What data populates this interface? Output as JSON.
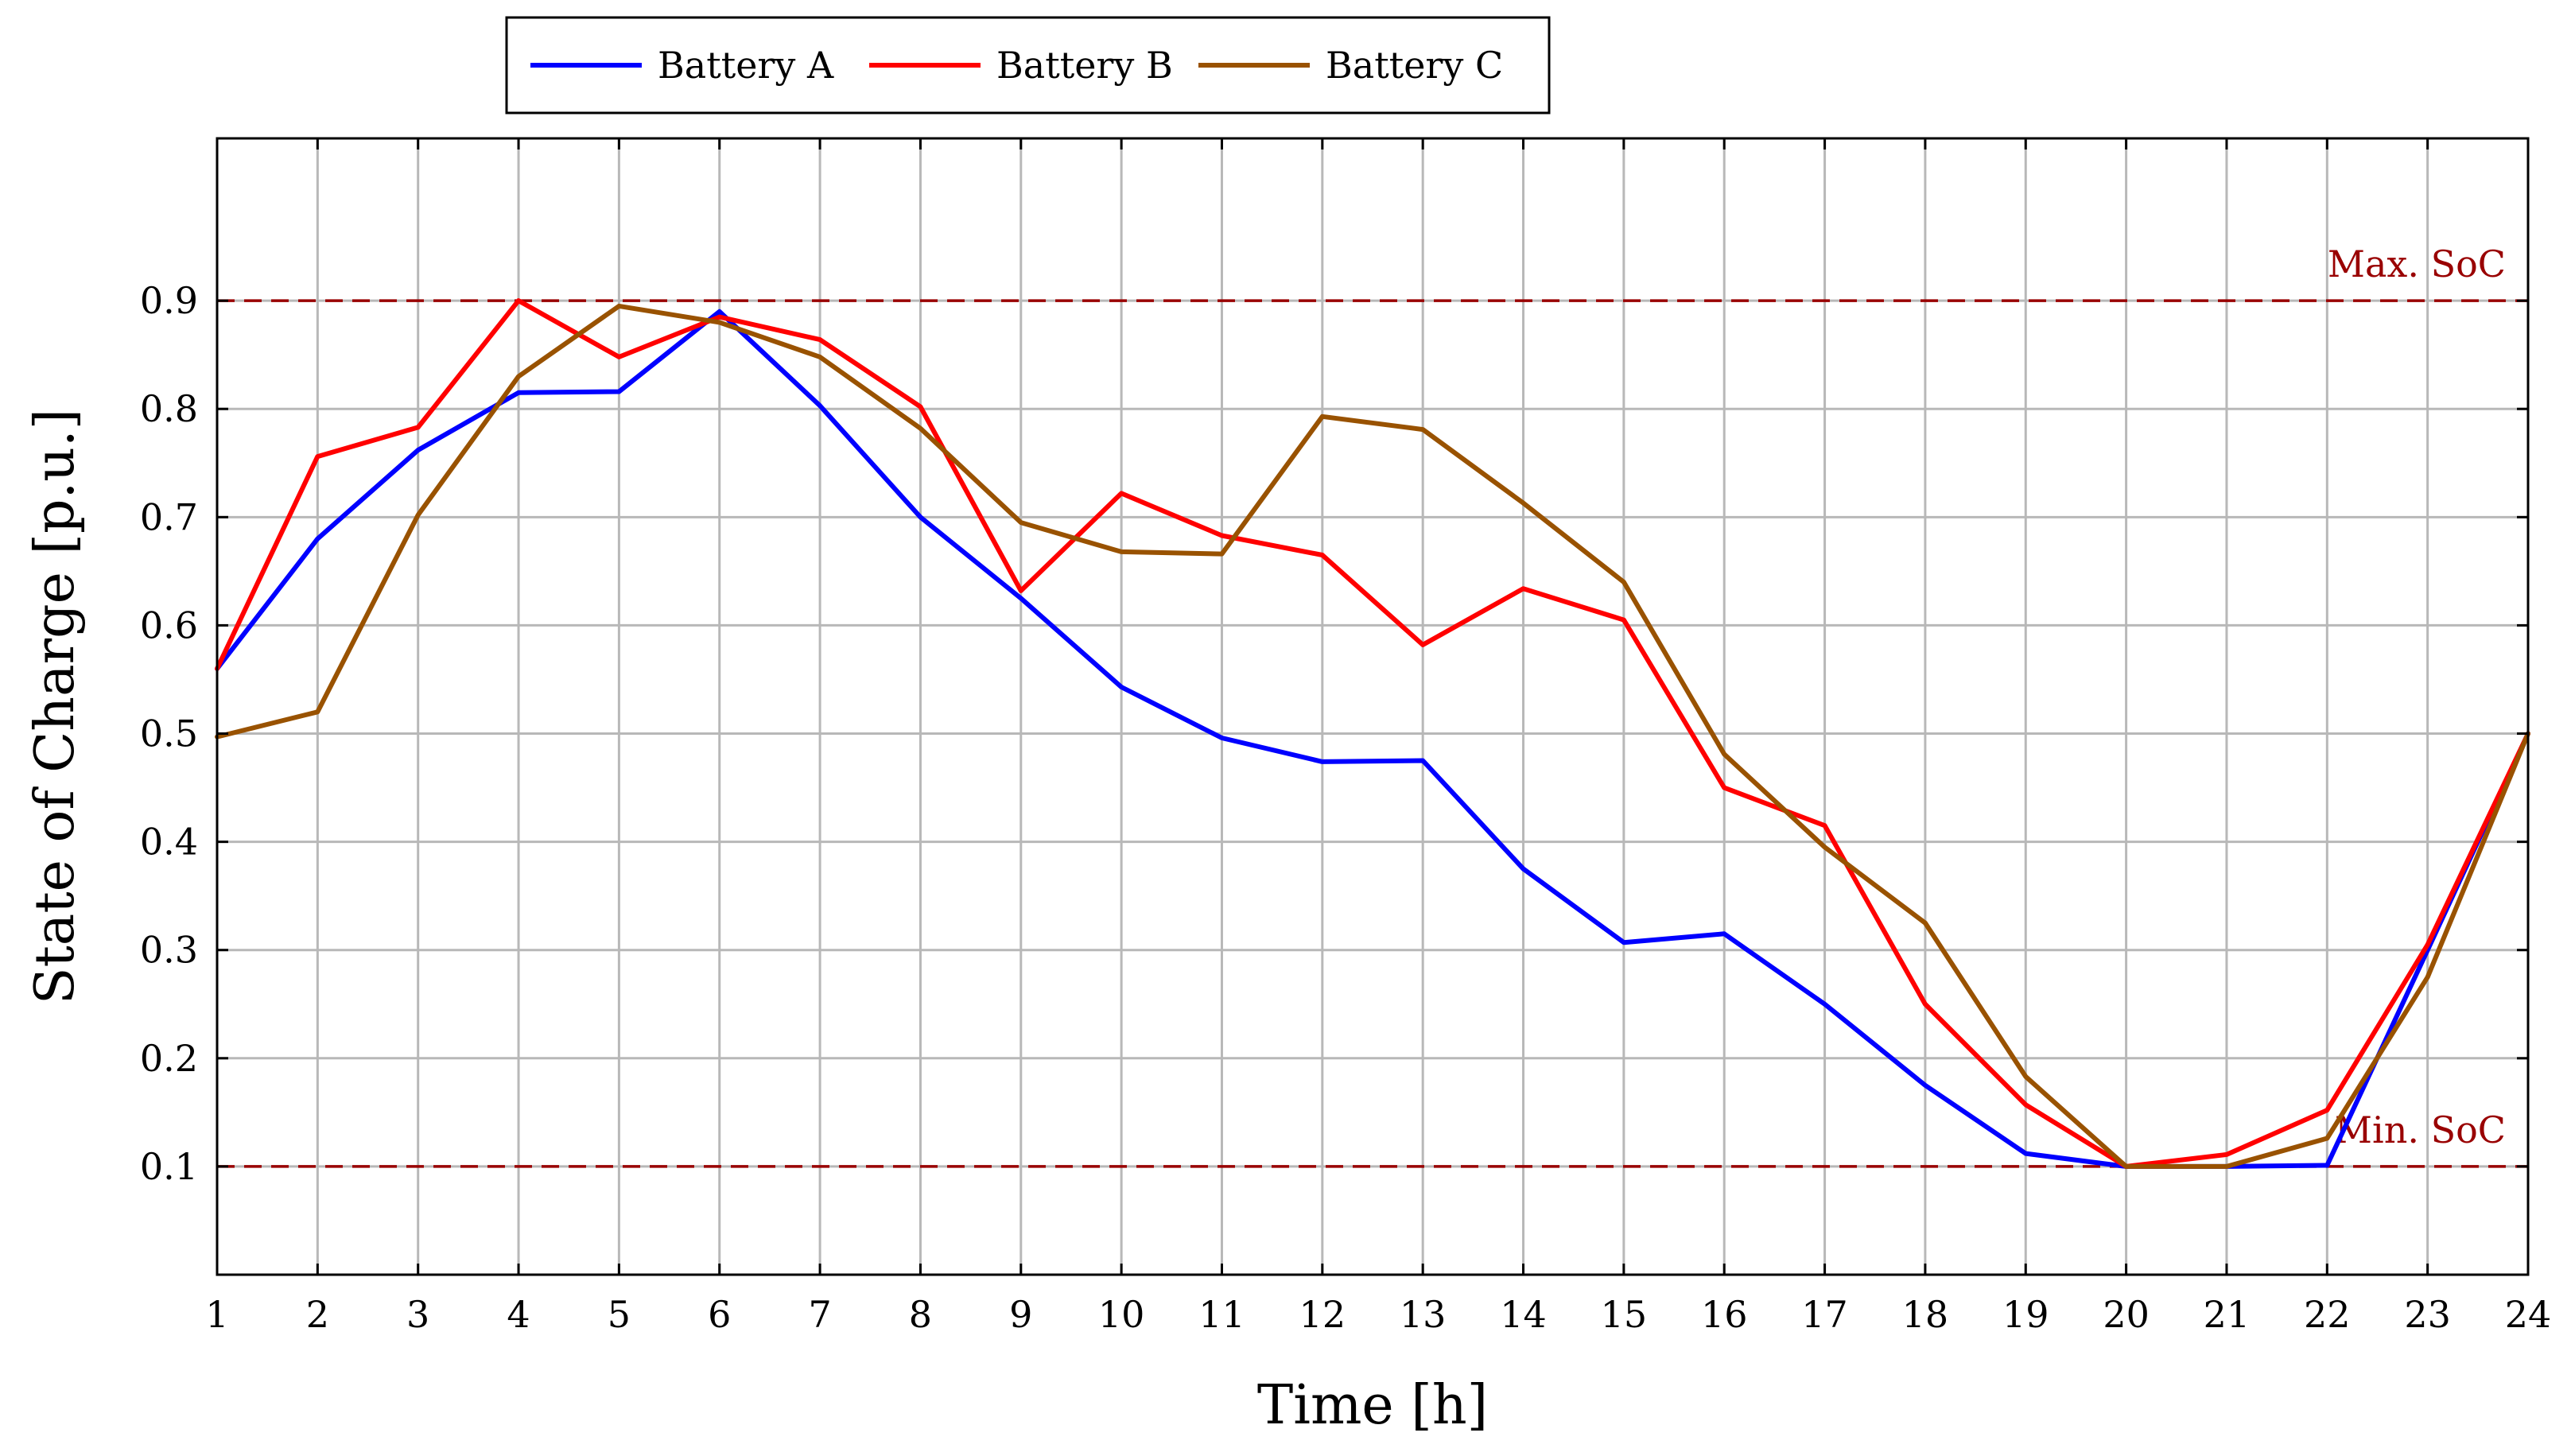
{
  "chart_data": {
    "type": "line",
    "xlabel": "Time [h]",
    "ylabel": "State of Charge [p.u.]",
    "x": [
      1,
      2,
      3,
      4,
      5,
      6,
      7,
      8,
      9,
      10,
      11,
      12,
      13,
      14,
      15,
      16,
      17,
      18,
      19,
      20,
      21,
      22,
      23,
      24
    ],
    "xlim": [
      1,
      24
    ],
    "ylim": [
      0,
      1.05
    ],
    "x_ticks": [
      "1",
      "2",
      "3",
      "4",
      "5",
      "6",
      "7",
      "8",
      "9",
      "10",
      "11",
      "12",
      "13",
      "14",
      "15",
      "16",
      "17",
      "18",
      "19",
      "20",
      "21",
      "22",
      "23",
      "24"
    ],
    "y_ticks": [
      0.1,
      0.2,
      0.3,
      0.4,
      0.5,
      0.6,
      0.7,
      0.8,
      0.9
    ],
    "y_tick_labels": [
      "0.1",
      "0.2",
      "0.3",
      "0.4",
      "0.5",
      "0.6",
      "0.7",
      "0.8",
      "0.9"
    ],
    "grid": true,
    "legend_position": "top-left, above plot",
    "series": [
      {
        "name": "Battery A",
        "color": "#0000ff",
        "values": [
          0.56,
          0.68,
          0.762,
          0.815,
          0.816,
          0.89,
          0.803,
          0.7,
          0.625,
          0.543,
          0.496,
          0.474,
          0.475,
          0.375,
          0.307,
          0.315,
          0.25,
          0.175,
          0.112,
          0.1,
          0.1,
          0.101,
          0.3,
          0.5
        ]
      },
      {
        "name": "Battery B",
        "color": "#ff0000",
        "values": [
          0.56,
          0.756,
          0.783,
          0.9,
          0.848,
          0.885,
          0.864,
          0.802,
          0.632,
          0.722,
          0.683,
          0.665,
          0.582,
          0.634,
          0.605,
          0.45,
          0.415,
          0.25,
          0.157,
          0.1,
          0.111,
          0.152,
          0.305,
          0.5
        ]
      },
      {
        "name": "Battery C",
        "color": "#995200",
        "values": [
          0.497,
          0.52,
          0.702,
          0.83,
          0.895,
          0.88,
          0.848,
          0.782,
          0.695,
          0.668,
          0.666,
          0.793,
          0.781,
          0.713,
          0.64,
          0.481,
          0.395,
          0.325,
          0.183,
          0.1,
          0.1,
          0.126,
          0.275,
          0.5
        ]
      }
    ],
    "reference_lines": [
      {
        "label": "Max. SoC",
        "value": 0.9,
        "color": "#990000"
      },
      {
        "label": "Min. SoC",
        "value": 0.1,
        "color": "#990000"
      }
    ]
  }
}
